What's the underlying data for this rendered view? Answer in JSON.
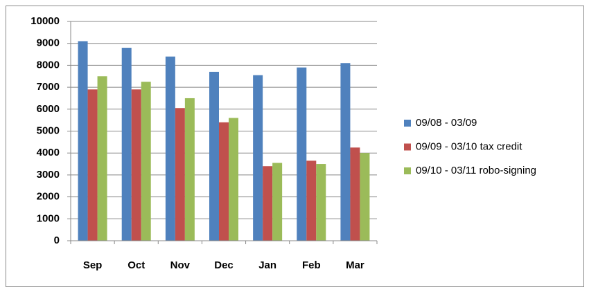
{
  "chart_data": {
    "type": "bar",
    "categories": [
      "Sep",
      "Oct",
      "Nov",
      "Dec",
      "Jan",
      "Feb",
      "Mar"
    ],
    "series": [
      {
        "name": "09/08 - 03/09",
        "color": "#4f81bd",
        "values": [
          9100,
          8800,
          8400,
          7700,
          7550,
          7900,
          8100
        ]
      },
      {
        "name": "09/09 - 03/10 tax credit",
        "color": "#c0504d",
        "values": [
          6900,
          6900,
          6050,
          5400,
          3400,
          3650,
          4250
        ]
      },
      {
        "name": "09/10 - 03/11 robo-signing",
        "color": "#9bbb59",
        "values": [
          7500,
          7250,
          6500,
          5600,
          3550,
          3500,
          4000
        ]
      }
    ],
    "ylim": [
      0,
      10000
    ],
    "yticks": [
      0,
      1000,
      2000,
      3000,
      4000,
      5000,
      6000,
      7000,
      8000,
      9000,
      10000
    ],
    "grid": true,
    "legend": "right"
  }
}
